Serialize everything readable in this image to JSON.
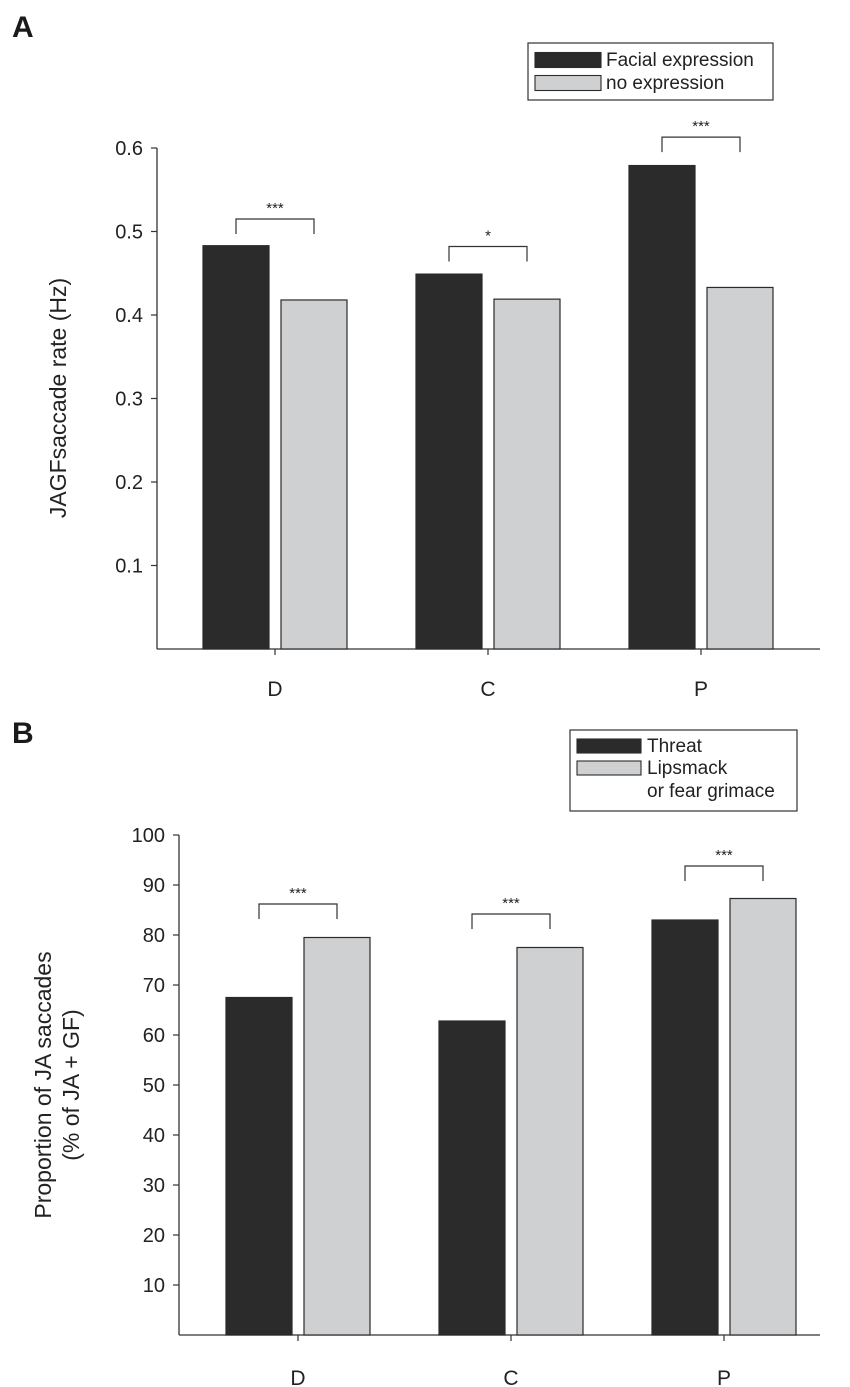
{
  "chart_data": [
    {
      "panel": "A",
      "type": "bar",
      "categories": [
        "D",
        "C",
        "P"
      ],
      "series": [
        {
          "name": "Facial expression",
          "values": [
            0.483,
            0.449,
            0.579
          ],
          "color": "#2b2b2b"
        },
        {
          "name": "no expression",
          "values": [
            0.418,
            0.419,
            0.433
          ],
          "color": "#cfd0d2"
        }
      ],
      "ylabel": "JAGFsaccade rate (Hz)",
      "yticks": [
        0.1,
        0.2,
        0.3,
        0.4,
        0.5,
        0.6
      ],
      "ytick_labels": [
        "0.1",
        "0.2",
        "0.3",
        "0.4",
        "0.5",
        "0.6"
      ],
      "ylim": [
        0,
        0.6
      ],
      "legend_position": "top-right",
      "significance": [
        {
          "category": "D",
          "label": "***",
          "level": 0.515
        },
        {
          "category": "C",
          "label": "*",
          "level": 0.482
        },
        {
          "category": "P",
          "label": "***",
          "level": 0.613
        }
      ]
    },
    {
      "panel": "B",
      "type": "bar",
      "categories": [
        "D",
        "C",
        "P"
      ],
      "series": [
        {
          "name": "Threat",
          "values": [
            67.5,
            62.8,
            83
          ],
          "color": "#2b2b2b"
        },
        {
          "name": "Lipsmack\nor fear grimace",
          "values": [
            79.5,
            77.5,
            87.3
          ],
          "color": "#cfd0d2"
        }
      ],
      "ylabel_lines": [
        "Proportion of JA saccades",
        "(% of JA + GF)"
      ],
      "yticks": [
        10,
        20,
        30,
        40,
        50,
        60,
        70,
        80,
        90,
        100
      ],
      "ytick_labels": [
        "10",
        "20",
        "30",
        "40",
        "50",
        "60",
        "70",
        "80",
        "90",
        "100"
      ],
      "ylim": [
        0,
        100
      ],
      "legend_position": "top-right",
      "significance": [
        {
          "category": "D",
          "label": "***",
          "level": 86.2
        },
        {
          "category": "C",
          "label": "***",
          "level": 84.2
        },
        {
          "category": "P",
          "label": "***",
          "level": 93.8
        }
      ]
    }
  ]
}
